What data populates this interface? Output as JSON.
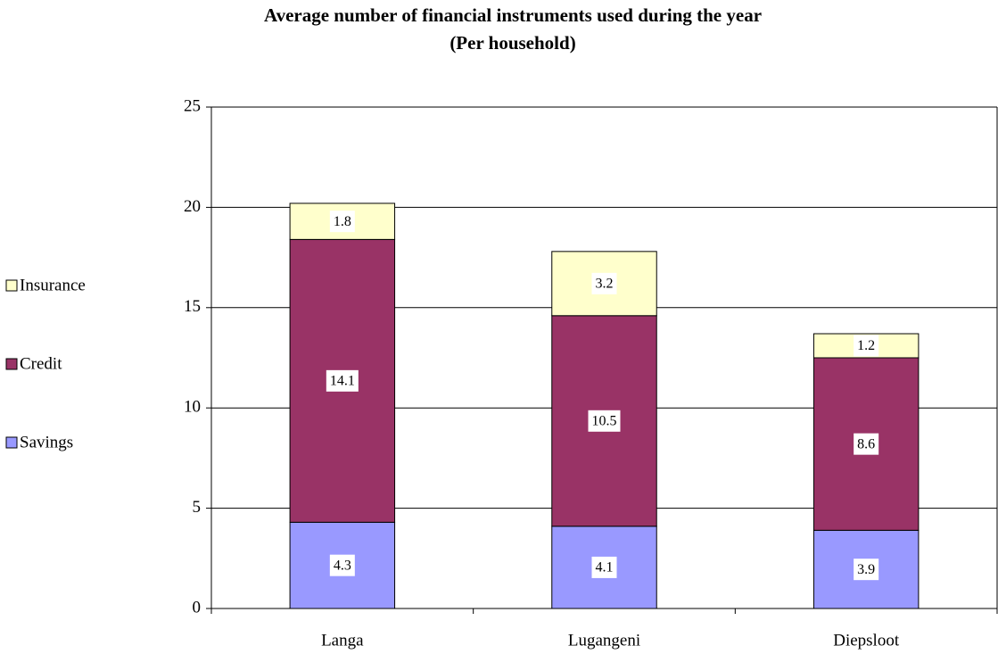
{
  "chart_data": {
    "type": "stacked_bar",
    "title": "Average number of financial instruments used during the year",
    "subtitle": "(Per household)",
    "categories": [
      "Langa",
      "Lugangeni",
      "Diepsloot"
    ],
    "series": [
      {
        "name": "Savings",
        "color": "#9999ff",
        "values": [
          4.3,
          4.1,
          3.9
        ]
      },
      {
        "name": "Credit",
        "color": "#993366",
        "values": [
          14.1,
          10.5,
          8.6
        ]
      },
      {
        "name": "Insurance",
        "color": "#ffffcc",
        "values": [
          1.8,
          3.2,
          1.2
        ]
      }
    ],
    "ylim": [
      0,
      25
    ],
    "yticks": [
      0,
      5,
      10,
      15,
      20,
      25
    ],
    "grid": true,
    "legend": "left"
  }
}
